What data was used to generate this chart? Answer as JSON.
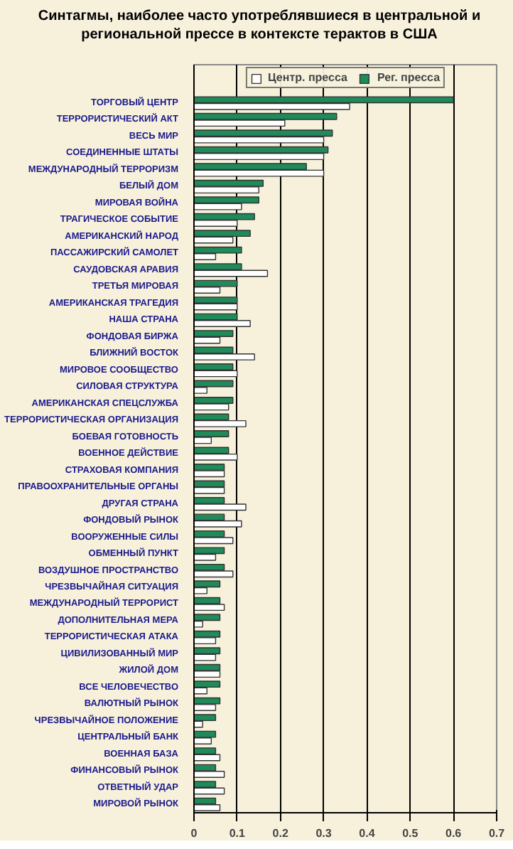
{
  "chart_data": {
    "type": "bar",
    "orientation": "horizontal",
    "title": "Синтагмы, наиболее часто употреблявшиеся в центральной и\nрегиональной прессе в контексте терактов в США",
    "categories": [
      "ТОРГОВЫЙ ЦЕНТР",
      "ТЕРРОРИСТИЧЕСКИЙ АКТ",
      "ВЕСЬ МИР",
      "СОЕДИНЕННЫЕ ШТАТЫ",
      "МЕЖДУНАРОДНЫЙ ТЕРРОРИЗМ",
      "БЕЛЫЙ ДОМ",
      "МИРОВАЯ ВОЙНА",
      "ТРАГИЧЕСКОЕ СОБЫТИЕ",
      "АМЕРИКАНСКИЙ НАРОД",
      "ПАССАЖИРСКИЙ САМОЛЕТ",
      "САУДОВСКАЯ АРАВИЯ",
      "ТРЕТЬЯ МИРОВАЯ",
      "АМЕРИКАНСКАЯ ТРАГЕДИЯ",
      "НАША СТРАНА",
      "ФОНДОВАЯ БИРЖА",
      "БЛИЖНИЙ ВОСТОК",
      "МИРОВОЕ СООБЩЕСТВО",
      "СИЛОВАЯ СТРУКТУРА",
      "АМЕРИКАНСКАЯ СПЕЦСЛУЖБА",
      "ТЕРРОРИСТИЧЕСКАЯ ОРГАНИЗАЦИЯ",
      "БОЕВАЯ ГОТОВНОСТЬ",
      "ВОЕННОЕ ДЕЙСТВИЕ",
      "СТРАХОВАЯ КОМПАНИЯ",
      "ПРАВООХРАНИТЕЛЬНЫЕ ОРГАНЫ",
      "ДРУГАЯ СТРАНА",
      "ФОНДОВЫЙ РЫНОК",
      "ВООРУЖЕННЫЕ СИЛЫ",
      "ОБМЕННЫЙ ПУНКТ",
      "ВОЗДУШНОЕ ПРОСТРАНСТВО",
      "ЧРЕЗВЫЧАЙНАЯ СИТУАЦИЯ",
      "МЕЖДУНАРОДНЫЙ ТЕРРОРИСТ",
      "ДОПОЛНИТЕЛЬНАЯ МЕРА",
      "ТЕРРОРИСТИЧЕСКАЯ АТАКА",
      "ЦИВИЛИЗОВАННЫЙ МИР",
      "ЖИЛОЙ ДОМ",
      "ВСЕ ЧЕЛОВЕЧЕСТВО",
      "ВАЛЮТНЫЙ РЫНОК",
      "ЧРЕЗВЫЧАЙНОЕ ПОЛОЖЕНИЕ",
      "ЦЕНТРАЛЬНЫЙ БАНК",
      "ВОЕННАЯ БАЗА",
      "ФИНАНСОВЫЙ РЫНОК",
      "ОТВЕТНЫЙ УДАР",
      "МИРОВОЙ РЫНОК"
    ],
    "series": [
      {
        "name": "Центр. пресса",
        "color": "#ffffff",
        "values": [
          0.36,
          0.21,
          0.3,
          0.3,
          0.3,
          0.15,
          0.11,
          0.1,
          0.09,
          0.05,
          0.17,
          0.06,
          0.1,
          0.13,
          0.06,
          0.14,
          0.1,
          0.03,
          0.08,
          0.12,
          0.04,
          0.1,
          0.07,
          0.07,
          0.12,
          0.11,
          0.09,
          0.05,
          0.09,
          0.03,
          0.07,
          0.02,
          0.05,
          0.05,
          0.06,
          0.03,
          0.05,
          0.02,
          0.04,
          0.06,
          0.07,
          0.07,
          0.06
        ]
      },
      {
        "name": "Рег. пресса",
        "color": "#1f8a5a",
        "values": [
          0.6,
          0.33,
          0.32,
          0.31,
          0.26,
          0.16,
          0.15,
          0.14,
          0.13,
          0.11,
          0.11,
          0.1,
          0.1,
          0.1,
          0.09,
          0.09,
          0.09,
          0.09,
          0.09,
          0.08,
          0.08,
          0.08,
          0.07,
          0.07,
          0.07,
          0.07,
          0.07,
          0.07,
          0.07,
          0.06,
          0.06,
          0.06,
          0.06,
          0.06,
          0.06,
          0.06,
          0.06,
          0.05,
          0.05,
          0.05,
          0.05,
          0.05,
          0.05
        ]
      }
    ],
    "xlim": [
      0,
      0.7
    ],
    "xticks": [
      0,
      0.1,
      0.2,
      0.3,
      0.4,
      0.5,
      0.6,
      0.7
    ],
    "grid": "x",
    "legend": "top"
  }
}
